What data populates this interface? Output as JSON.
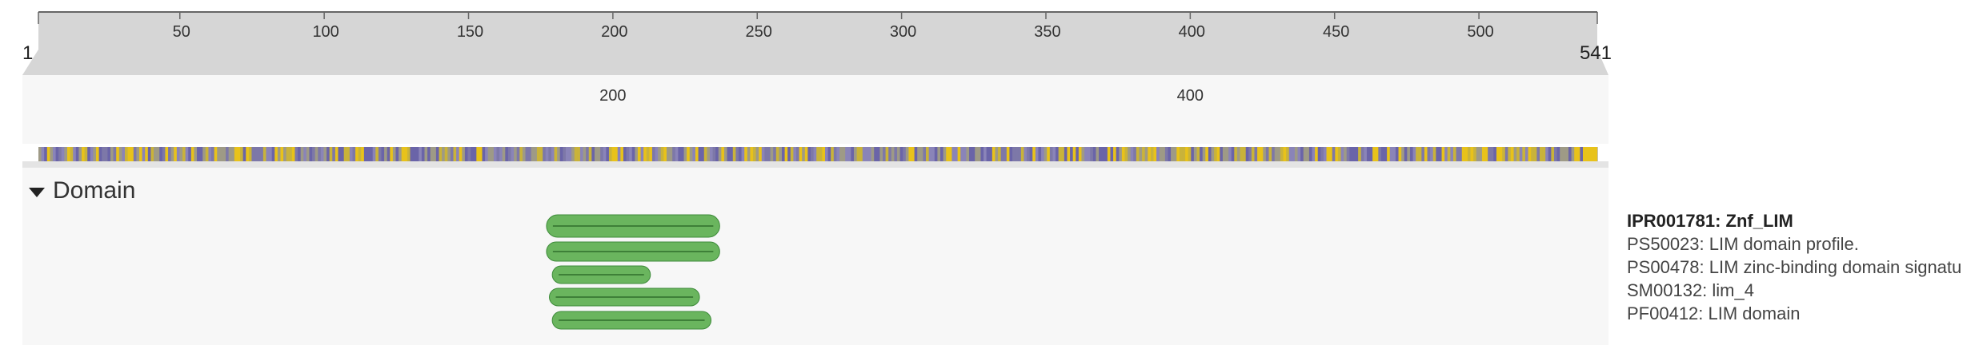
{
  "sequence": {
    "start_label": "1",
    "end_label": "541",
    "length": 541,
    "ruler_ticks": [
      "50",
      "100",
      "150",
      "200",
      "250",
      "300",
      "350",
      "400",
      "450",
      "500"
    ],
    "zoom_ticks": [
      "200",
      "400"
    ],
    "zoom_range": [
      1,
      541
    ]
  },
  "colors": {
    "ruler_band": "#d6d6d6",
    "zoom_band": "#f7f7f7",
    "domain_band": "#f7f7f7",
    "domain_fill": "#6ab55e",
    "domain_stroke": "#3e8b3a",
    "track_purple": "#6a64a8",
    "track_yellow": "#e8c21a",
    "track_grey": "#9e9a86"
  },
  "domain_section": {
    "header": "Domain",
    "features": [
      {
        "accession": "IPR001781: Znf_LIM",
        "start": 177,
        "end": 237,
        "is_entry": true
      },
      {
        "accession": "PS50023: LIM domain profile.",
        "start": 177,
        "end": 237
      },
      {
        "accession": "PS00478: LIM zinc-binding domain signatu",
        "start": 179,
        "end": 213
      },
      {
        "accession": "SM00132: lim_4",
        "start": 178,
        "end": 230
      },
      {
        "accession": "PF00412: LIM domain",
        "start": 179,
        "end": 234
      }
    ]
  }
}
